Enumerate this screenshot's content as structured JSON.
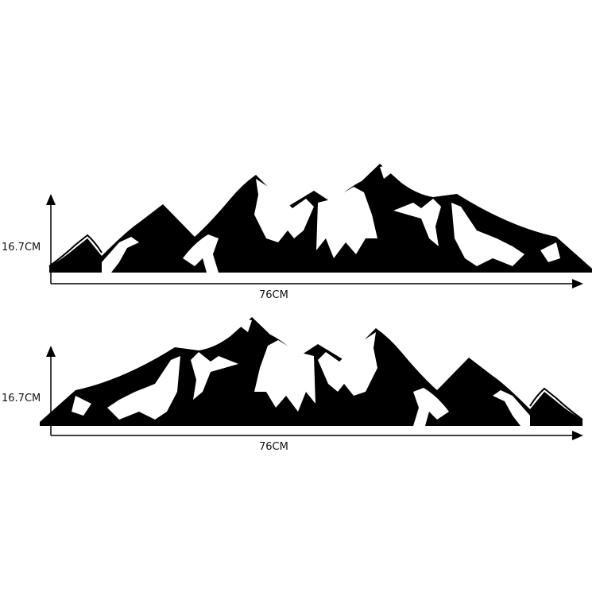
{
  "decals": [
    {
      "height_label": "16.7CM",
      "width_label": "76CM",
      "orientation": "original"
    },
    {
      "height_label": "16.7CM",
      "width_label": "76CM",
      "orientation": "mirrored"
    }
  ],
  "colors": {
    "decal": "#000000",
    "background": "#ffffff"
  }
}
